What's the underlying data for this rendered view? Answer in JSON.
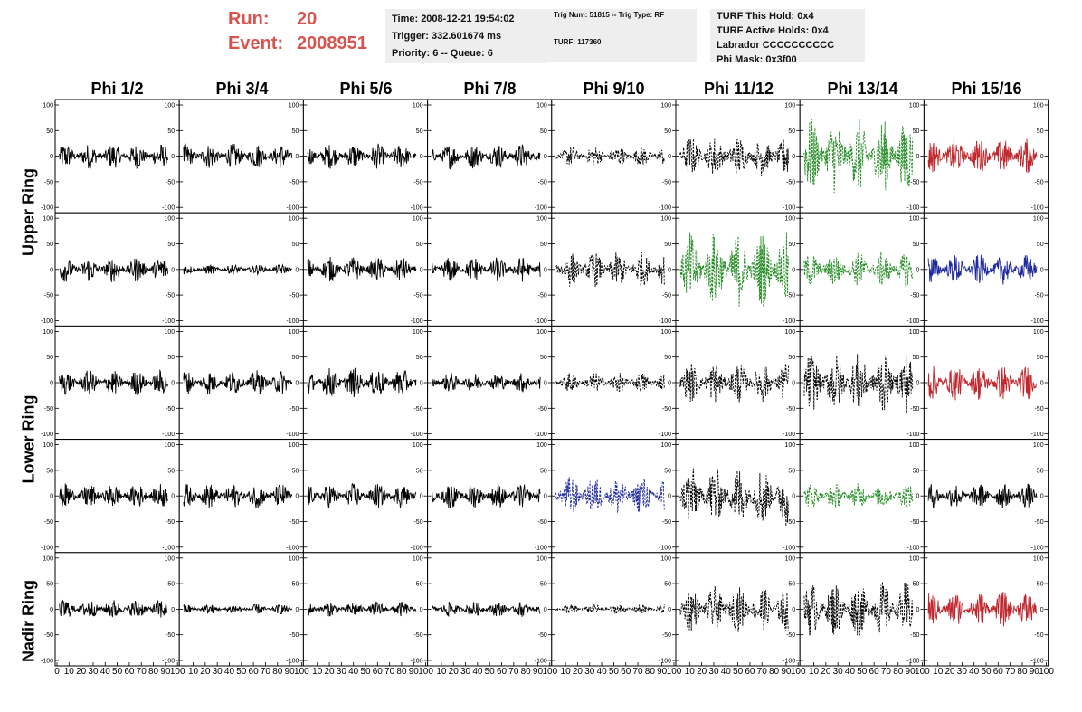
{
  "header": {
    "run_label": "Run:",
    "run_value": "20",
    "event_label": "Event:",
    "event_value": "2008951",
    "time": "Time: 2008-12-21 19:54:02",
    "trigger": "Trigger: 332.601674 ms",
    "priority": "Priority: 6 -- Queue: 6",
    "trig_num": "Trig Num: 51815 -- Trig Type: RF",
    "turf": "TURF: 117360",
    "turf_this_hold": "TURF This Hold: 0x4",
    "turf_active_holds": "TURF Active Holds: 0x4",
    "labrador": "Labrador CCCCCCCCCC",
    "phi_mask": "Phi Mask: 0x3f00"
  },
  "columns": [
    "Phi 1/2",
    "Phi 3/4",
    "Phi 5/6",
    "Phi 7/8",
    "Phi 9/10",
    "Phi 11/12",
    "Phi 13/14",
    "Phi 15/16"
  ],
  "row_labels": [
    "Upper Ring",
    "Lower Ring",
    "Nadir Ring"
  ],
  "colors": {
    "black": "#000000",
    "green": "#228b22",
    "red": "#c0272d",
    "blue": "#1f2a9c"
  },
  "chart_data": {
    "type": "line",
    "grid_rows": 5,
    "grid_cols": 8,
    "xlim": [
      0,
      100
    ],
    "ylim": [
      -100,
      100
    ],
    "x_ticks": [
      0,
      10,
      20,
      30,
      40,
      50,
      60,
      70,
      80,
      90,
      100
    ],
    "y_ticks": [
      -100,
      -50,
      0,
      50,
      100
    ],
    "panels": [
      [
        {
          "style": "solid",
          "color": "black",
          "amplitude": 25
        },
        {
          "style": "solid",
          "color": "black",
          "amplitude": 25
        },
        {
          "style": "solid",
          "color": "black",
          "amplitude": 25
        },
        {
          "style": "solid",
          "color": "black",
          "amplitude": 25
        },
        {
          "style": "dashed",
          "color": "black",
          "amplitude": 20
        },
        {
          "style": "dashed",
          "color": "black",
          "amplitude": 40
        },
        {
          "style": "dashed",
          "color": "green",
          "amplitude": 75
        },
        {
          "style": "solid",
          "color": "red",
          "amplitude": 35
        }
      ],
      [
        {
          "style": "solid",
          "color": "black",
          "amplitude": 25
        },
        {
          "style": "solid",
          "color": "black",
          "amplitude": 10
        },
        {
          "style": "solid",
          "color": "black",
          "amplitude": 25
        },
        {
          "style": "solid",
          "color": "black",
          "amplitude": 25
        },
        {
          "style": "dashed",
          "color": "black",
          "amplitude": 35
        },
        {
          "style": "dashed",
          "color": "green",
          "amplitude": 75
        },
        {
          "style": "dashed",
          "color": "green",
          "amplitude": 35
        },
        {
          "style": "solid",
          "color": "blue",
          "amplitude": 30
        }
      ],
      [
        {
          "style": "solid",
          "color": "black",
          "amplitude": 25
        },
        {
          "style": "solid",
          "color": "black",
          "amplitude": 25
        },
        {
          "style": "solid",
          "color": "black",
          "amplitude": 30
        },
        {
          "style": "solid",
          "color": "black",
          "amplitude": 20
        },
        {
          "style": "dashed",
          "color": "black",
          "amplitude": 20
        },
        {
          "style": "dashed",
          "color": "black",
          "amplitude": 40
        },
        {
          "style": "dashed",
          "color": "black",
          "amplitude": 60
        },
        {
          "style": "solid",
          "color": "red",
          "amplitude": 35
        }
      ],
      [
        {
          "style": "solid",
          "color": "black",
          "amplitude": 25
        },
        {
          "style": "solid",
          "color": "black",
          "amplitude": 25
        },
        {
          "style": "solid",
          "color": "black",
          "amplitude": 25
        },
        {
          "style": "solid",
          "color": "black",
          "amplitude": 25
        },
        {
          "style": "dashed",
          "color": "blue",
          "amplitude": 40
        },
        {
          "style": "dashed",
          "color": "black",
          "amplitude": 60
        },
        {
          "style": "dashed",
          "color": "green",
          "amplitude": 25
        },
        {
          "style": "solid",
          "color": "black",
          "amplitude": 25
        }
      ],
      [
        {
          "style": "solid",
          "color": "black",
          "amplitude": 20
        },
        {
          "style": "solid",
          "color": "black",
          "amplitude": 10
        },
        {
          "style": "solid",
          "color": "black",
          "amplitude": 15
        },
        {
          "style": "solid",
          "color": "black",
          "amplitude": 15
        },
        {
          "style": "dashed",
          "color": "black",
          "amplitude": 10
        },
        {
          "style": "dashed",
          "color": "black",
          "amplitude": 45
        },
        {
          "style": "dashed",
          "color": "black",
          "amplitude": 55
        },
        {
          "style": "solid",
          "color": "red",
          "amplitude": 35
        }
      ]
    ]
  }
}
